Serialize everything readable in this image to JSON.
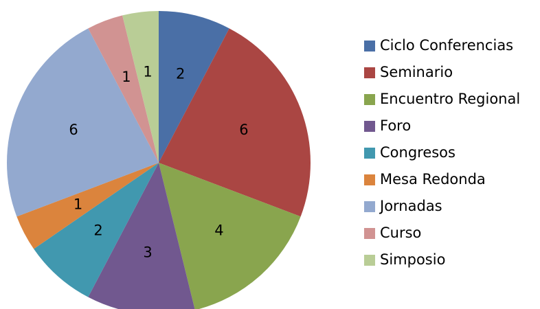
{
  "chart_data": {
    "type": "pie",
    "categories": [
      "Ciclo Conferencias",
      "Seminario",
      "Encuentro Regional",
      "Foro",
      "Congresos",
      "Mesa Redonda",
      "Jornadas",
      "Curso",
      "Simposio"
    ],
    "values": [
      2,
      6,
      4,
      3,
      2,
      1,
      6,
      1,
      1
    ],
    "colors": [
      "#4a6fa6",
      "#aa4643",
      "#89a54e",
      "#71588f",
      "#4198af",
      "#db843d",
      "#93a9cf",
      "#d19392",
      "#b9cd96"
    ],
    "legend": "right"
  }
}
